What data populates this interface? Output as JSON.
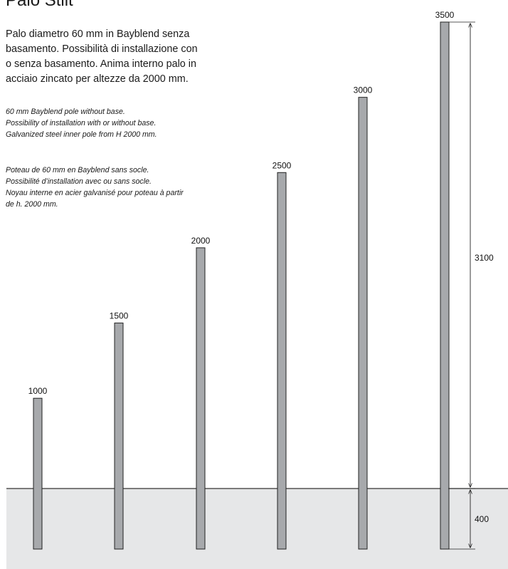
{
  "title": "Palo Stilt",
  "description": {
    "italian": [
      "Palo diametro 60 mm in Bayblend senza",
      "basamento. Possibilità di installazione con",
      "o senza basamento. Anima interno palo in",
      "acciaio zincato per altezze da 2000 mm."
    ],
    "english": [
      "60 mm Bayblend pole without base.",
      "Possibility of installation with or without base.",
      "Galvanized steel inner pole from H 2000 mm."
    ],
    "french": [
      "Poteau de 60 mm en Bayblend sans socle.",
      "Possibilité d’installation avec ou sans socle.",
      "Noyau interne en acier galvanisé pour poteau à partir",
      "de h. 2000 mm."
    ]
  },
  "poles": [
    {
      "height_label": "1000",
      "height_mm": 1000
    },
    {
      "height_label": "1500",
      "height_mm": 1500
    },
    {
      "height_label": "2000",
      "height_mm": 2000
    },
    {
      "height_label": "2500",
      "height_mm": 2500
    },
    {
      "height_label": "3000",
      "height_mm": 3000
    },
    {
      "height_label": "3500",
      "height_mm": 3500
    }
  ],
  "dimensions": {
    "above_ground_label": "3100",
    "above_ground_mm": 3100,
    "buried_label": "400",
    "buried_mm": 400
  },
  "colors": {
    "ground": "#e6e7e8",
    "pole_fill": "#a7a9ac",
    "pole_stroke": "#222222",
    "ground_line": "#333333"
  }
}
